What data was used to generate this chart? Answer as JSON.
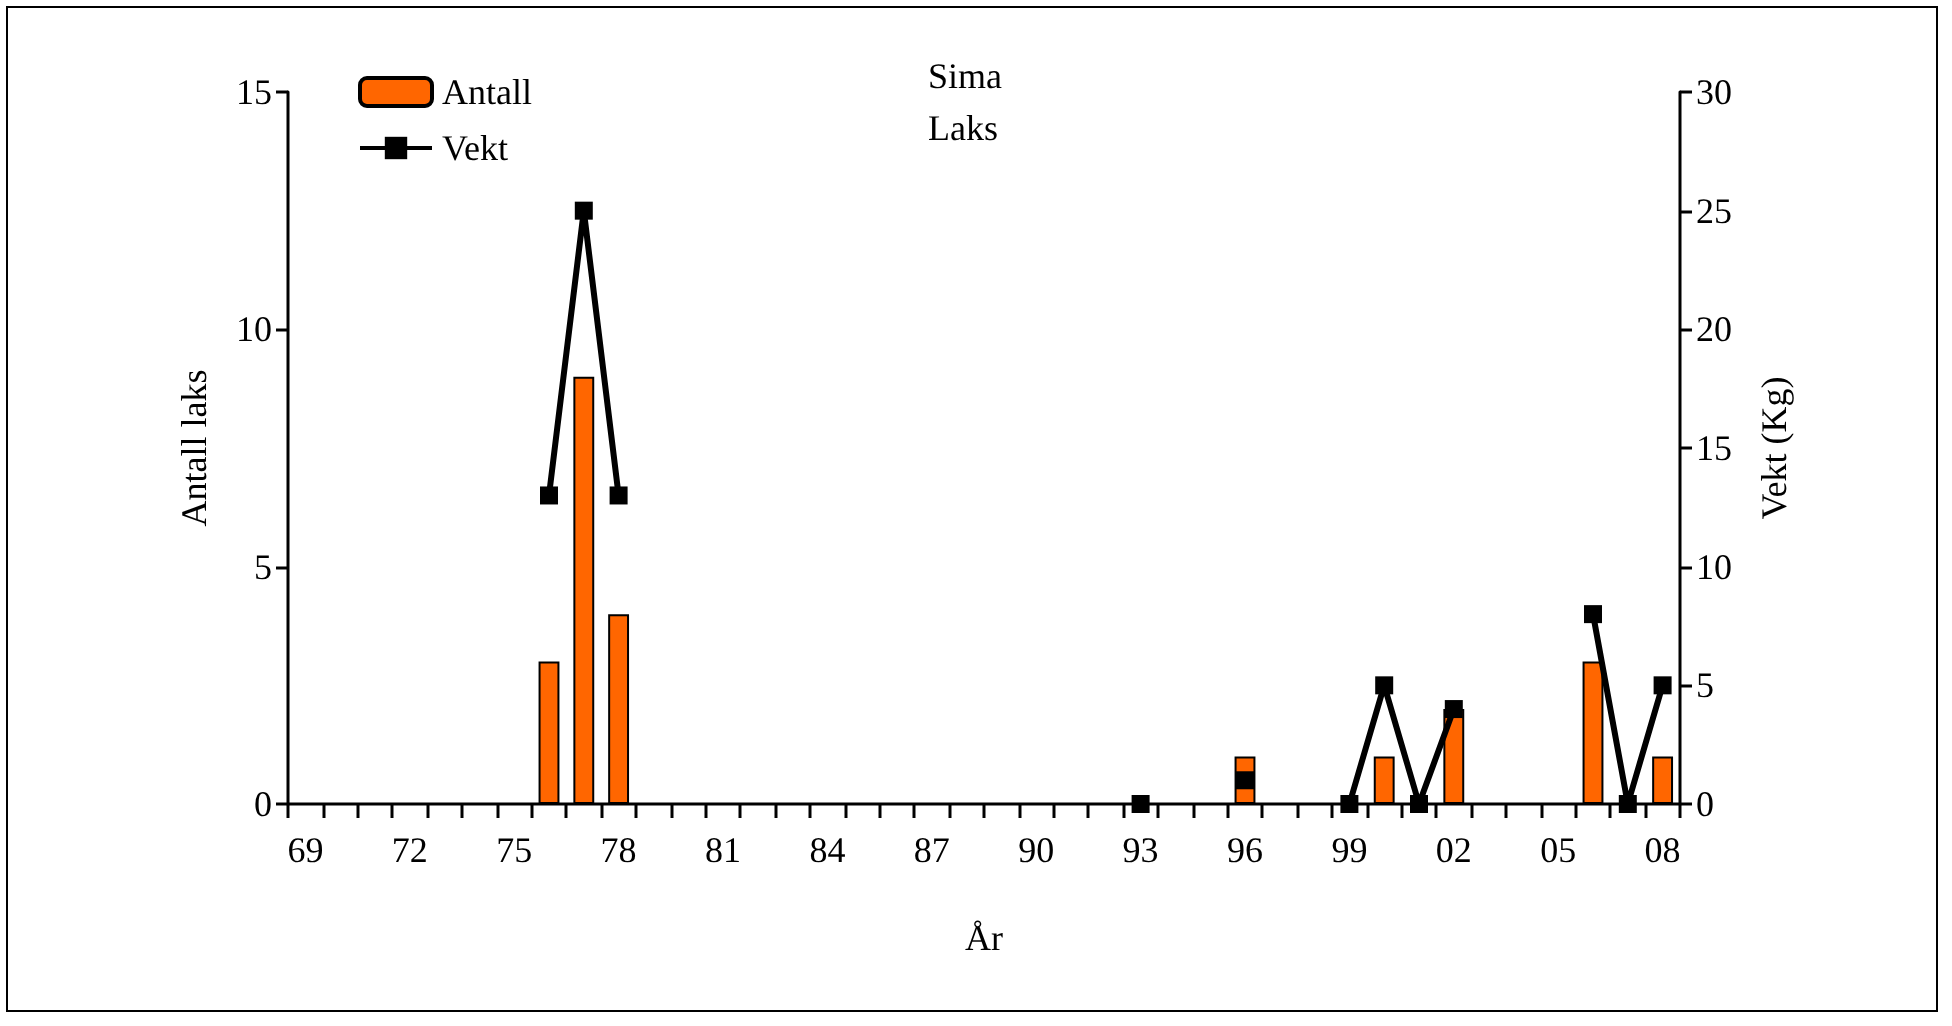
{
  "chart_data": {
    "type": "bar",
    "title": "Sima",
    "subtitle": "Laks",
    "xlabel": "År",
    "ylabel": "Antall laks",
    "y2label": "Vekt (Kg)",
    "categories": [
      "69",
      null,
      null,
      "72",
      null,
      null,
      "75",
      null,
      null,
      "78",
      null,
      null,
      "81",
      null,
      null,
      "84",
      null,
      null,
      "87",
      null,
      null,
      "90",
      null,
      null,
      "93",
      null,
      null,
      "96",
      null,
      null,
      "99",
      null,
      null,
      "02",
      null,
      null,
      "05",
      null,
      null,
      "08"
    ],
    "series": [
      {
        "name": "Antall",
        "color": "#ff6600",
        "values": [
          null,
          null,
          null,
          null,
          null,
          null,
          null,
          3,
          9,
          4,
          null,
          null,
          null,
          null,
          null,
          null,
          null,
          null,
          null,
          null,
          null,
          null,
          null,
          null,
          null,
          null,
          null,
          1,
          null,
          null,
          null,
          1,
          null,
          2,
          null,
          null,
          null,
          3,
          null,
          1
        ]
      },
      {
        "name": "Vekt",
        "type": "line",
        "axis": "y2",
        "color": "#000000",
        "marker": "square",
        "values": [
          null,
          null,
          null,
          null,
          null,
          null,
          null,
          13,
          25,
          13,
          null,
          null,
          null,
          null,
          null,
          null,
          null,
          null,
          null,
          null,
          null,
          null,
          null,
          null,
          0,
          null,
          null,
          1,
          null,
          null,
          0,
          5,
          0,
          4,
          null,
          null,
          null,
          8,
          0,
          5
        ]
      }
    ],
    "ylim": [
      0,
      15
    ],
    "yticks": [
      0,
      5,
      10,
      15
    ],
    "y2lim": [
      0,
      30
    ],
    "y2ticks": [
      0,
      5,
      10,
      15,
      20,
      25,
      30
    ],
    "grid": false,
    "legend": "top left"
  }
}
